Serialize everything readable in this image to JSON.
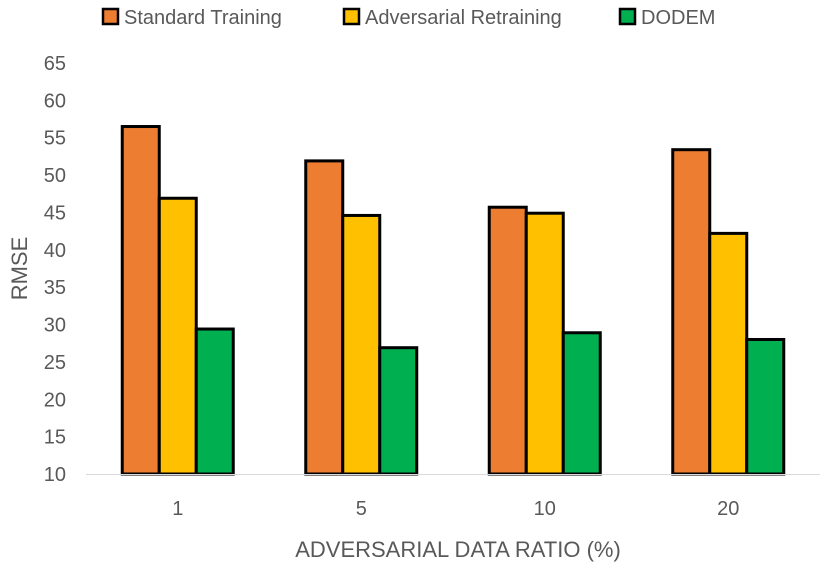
{
  "chart_data": {
    "type": "bar",
    "categories": [
      "1",
      "5",
      "10",
      "20"
    ],
    "series": [
      {
        "name": "Standard Training",
        "values": [
          56.5,
          51.9,
          45.7,
          53.4
        ],
        "color": "#ED7D31"
      },
      {
        "name": "Adversarial Retraining",
        "values": [
          46.9,
          44.6,
          44.9,
          42.2
        ],
        "color": "#FFC000"
      },
      {
        "name": "DODEM",
        "values": [
          29.4,
          26.9,
          28.9,
          28.0
        ],
        "color": "#00B050"
      }
    ],
    "xlabel": "ADVERSARIAL DATA RATIO (%)",
    "ylabel": "RMSE",
    "ylim": [
      10,
      65
    ],
    "yticks": [
      "10",
      "15",
      "20",
      "25",
      "30",
      "35",
      "40",
      "45",
      "50",
      "55",
      "60",
      "65"
    ],
    "grid": false,
    "legend_position": "top",
    "bar_outline_color": "#000000"
  }
}
